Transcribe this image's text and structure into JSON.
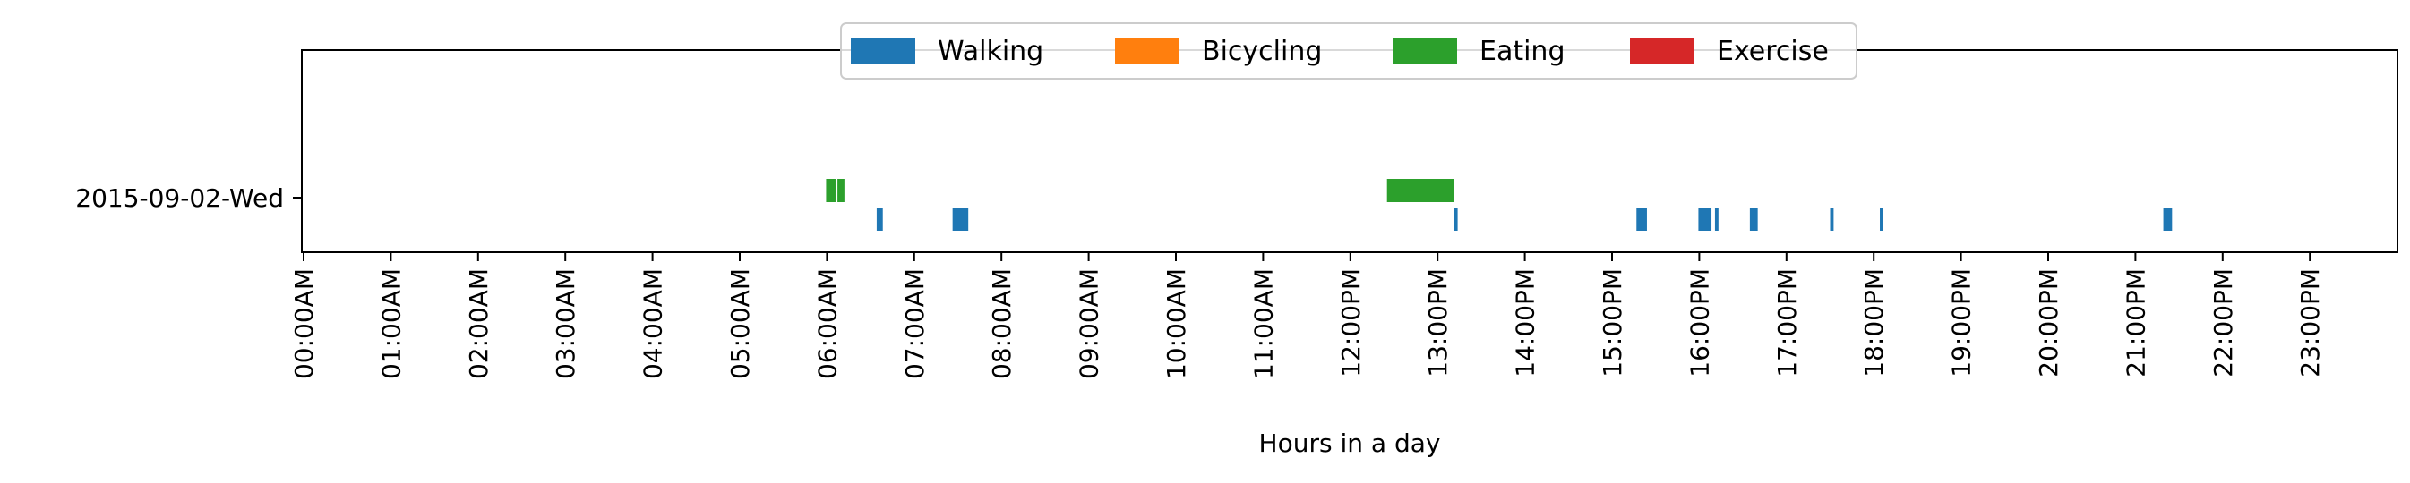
{
  "chart_data": {
    "type": "timeline",
    "xlabel": "Hours in a day",
    "xlim": [
      0,
      24
    ],
    "x_ticks": [
      "00:00AM",
      "01:00AM",
      "02:00AM",
      "03:00AM",
      "04:00AM",
      "05:00AM",
      "06:00AM",
      "07:00AM",
      "08:00AM",
      "09:00AM",
      "10:00AM",
      "11:00AM",
      "12:00PM",
      "13:00PM",
      "14:00PM",
      "15:00PM",
      "16:00PM",
      "17:00PM",
      "18:00PM",
      "19:00PM",
      "20:00PM",
      "21:00PM",
      "22:00PM",
      "23:00PM"
    ],
    "rows": [
      "2015-09-02-Wed"
    ],
    "legend_position": "upper center",
    "series": [
      {
        "name": "Walking",
        "color": "#1f77b4",
        "lane": "lower",
        "intervals": [
          [
            6.57,
            6.64
          ],
          [
            7.44,
            7.62
          ],
          [
            13.19,
            13.23
          ],
          [
            15.28,
            15.4
          ],
          [
            15.99,
            16.14
          ],
          [
            16.18,
            16.22
          ],
          [
            16.58,
            16.67
          ],
          [
            17.5,
            17.54
          ],
          [
            18.07,
            18.11
          ],
          [
            21.32,
            21.42
          ]
        ]
      },
      {
        "name": "Bicycling",
        "color": "#ff7f0e",
        "lane": "lower",
        "intervals": []
      },
      {
        "name": "Eating",
        "color": "#2ca02c",
        "lane": "upper",
        "intervals": [
          [
            5.99,
            6.1
          ],
          [
            6.12,
            6.2
          ],
          [
            12.42,
            13.19
          ]
        ]
      },
      {
        "name": "Exercise",
        "color": "#d62728",
        "lane": "lower",
        "intervals": []
      }
    ]
  }
}
